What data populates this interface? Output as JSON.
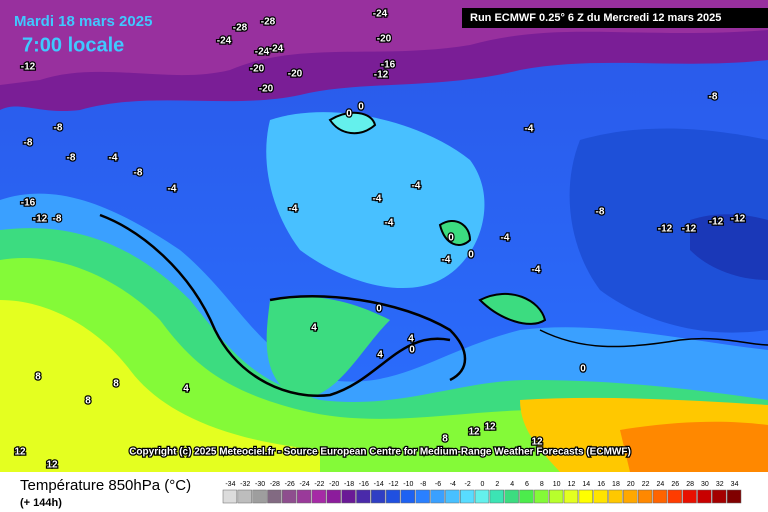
{
  "header": {
    "date": "Mardi 18 mars 2025",
    "time": "7:00 locale",
    "run": "Run ECMWF 0.25° 6 Z du Mercredi 12 mars 2025"
  },
  "copyright": "Copyright (c) 2025 Meteociel.fr - Source European Centre for Medium-Range Weather Forecasts (ECMWF)",
  "footer": {
    "title": "Température 850hPa (°C)",
    "lead": "(+ 144h)"
  },
  "scale": {
    "values": [
      -34,
      -32,
      -30,
      -28,
      -26,
      -24,
      -22,
      -20,
      -18,
      -16,
      -14,
      -12,
      -10,
      -8,
      -6,
      -4,
      -2,
      0,
      2,
      4,
      6,
      8,
      10,
      12,
      14,
      16,
      18,
      20,
      22,
      24,
      26,
      28,
      30,
      32,
      34
    ],
    "colors": [
      "#dcdcdc",
      "#bdbdbd",
      "#9e9e9e",
      "#826a82",
      "#8e4e8e",
      "#9a3a9a",
      "#a62aa6",
      "#8c1c9c",
      "#6a1a96",
      "#4a2aaa",
      "#2f3ec4",
      "#2050e0",
      "#1e62f2",
      "#2a80ff",
      "#3aa0ff",
      "#48c0ff",
      "#58dcff",
      "#64f0ec",
      "#3ce4b4",
      "#3cdc80",
      "#4cec4c",
      "#84fa38",
      "#b8ff2c",
      "#e4ff20",
      "#ffff00",
      "#ffe400",
      "#ffc800",
      "#ffa800",
      "#ff8800",
      "#ff6400",
      "#ff3c00",
      "#e81000",
      "#c80000",
      "#a40000",
      "#800000"
    ]
  },
  "contour_labels": [
    "-24",
    "-28",
    "-28",
    "-24",
    "-24",
    "-20",
    "-24",
    "-20",
    "-20",
    "-16",
    "-12",
    "-20",
    "-12",
    "-8",
    "-8",
    "-8",
    "-4",
    "-8",
    "-8",
    "-16",
    "-12",
    "-8",
    "-4",
    "0",
    "0",
    "-4",
    "-4",
    "-4",
    "-4",
    "-4",
    "0",
    "0",
    "-4",
    "-4",
    "-4",
    "-8",
    "-12",
    "-12",
    "-12",
    "-12",
    "0",
    "4",
    "4",
    "0",
    "4",
    "8",
    "8",
    "4",
    "8",
    "12",
    "12",
    "12",
    "0",
    "8",
    "12",
    "12"
  ]
}
